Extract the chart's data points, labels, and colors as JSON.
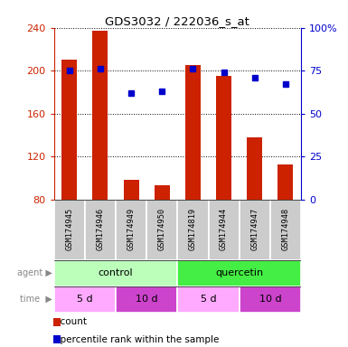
{
  "title": "GDS3032 / 222036_s_at",
  "samples": [
    "GSM174945",
    "GSM174946",
    "GSM174949",
    "GSM174950",
    "GSM174819",
    "GSM174944",
    "GSM174947",
    "GSM174948"
  ],
  "counts": [
    210,
    237,
    98,
    93,
    205,
    195,
    138,
    113
  ],
  "percentile_ranks": [
    75,
    76,
    62,
    63,
    76,
    74,
    71,
    67
  ],
  "ylim_left": [
    80,
    240
  ],
  "ylim_right": [
    0,
    100
  ],
  "yticks_left": [
    80,
    120,
    160,
    200,
    240
  ],
  "yticks_right": [
    0,
    25,
    50,
    75,
    100
  ],
  "ytick_labels_left": [
    "80",
    "120",
    "160",
    "200",
    "240"
  ],
  "ytick_labels_right": [
    "0",
    "25",
    "50",
    "75",
    "100%"
  ],
  "bar_color": "#cc2200",
  "dot_color": "#0000cc",
  "sample_bg_color": "#cccccc",
  "agent_groups": [
    {
      "label": "control",
      "start": 0,
      "end": 4,
      "color": "#bbffbb"
    },
    {
      "label": "quercetin",
      "start": 4,
      "end": 8,
      "color": "#44ee44"
    }
  ],
  "time_groups": [
    {
      "label": "5 d",
      "start": 0,
      "end": 2,
      "color": "#ffaaff"
    },
    {
      "label": "10 d",
      "start": 2,
      "end": 4,
      "color": "#cc44cc"
    },
    {
      "label": "5 d",
      "start": 4,
      "end": 6,
      "color": "#ffaaff"
    },
    {
      "label": "10 d",
      "start": 6,
      "end": 8,
      "color": "#cc44cc"
    }
  ],
  "legend_count_color": "#cc2200",
  "legend_pct_color": "#0000cc",
  "bar_width": 0.5
}
